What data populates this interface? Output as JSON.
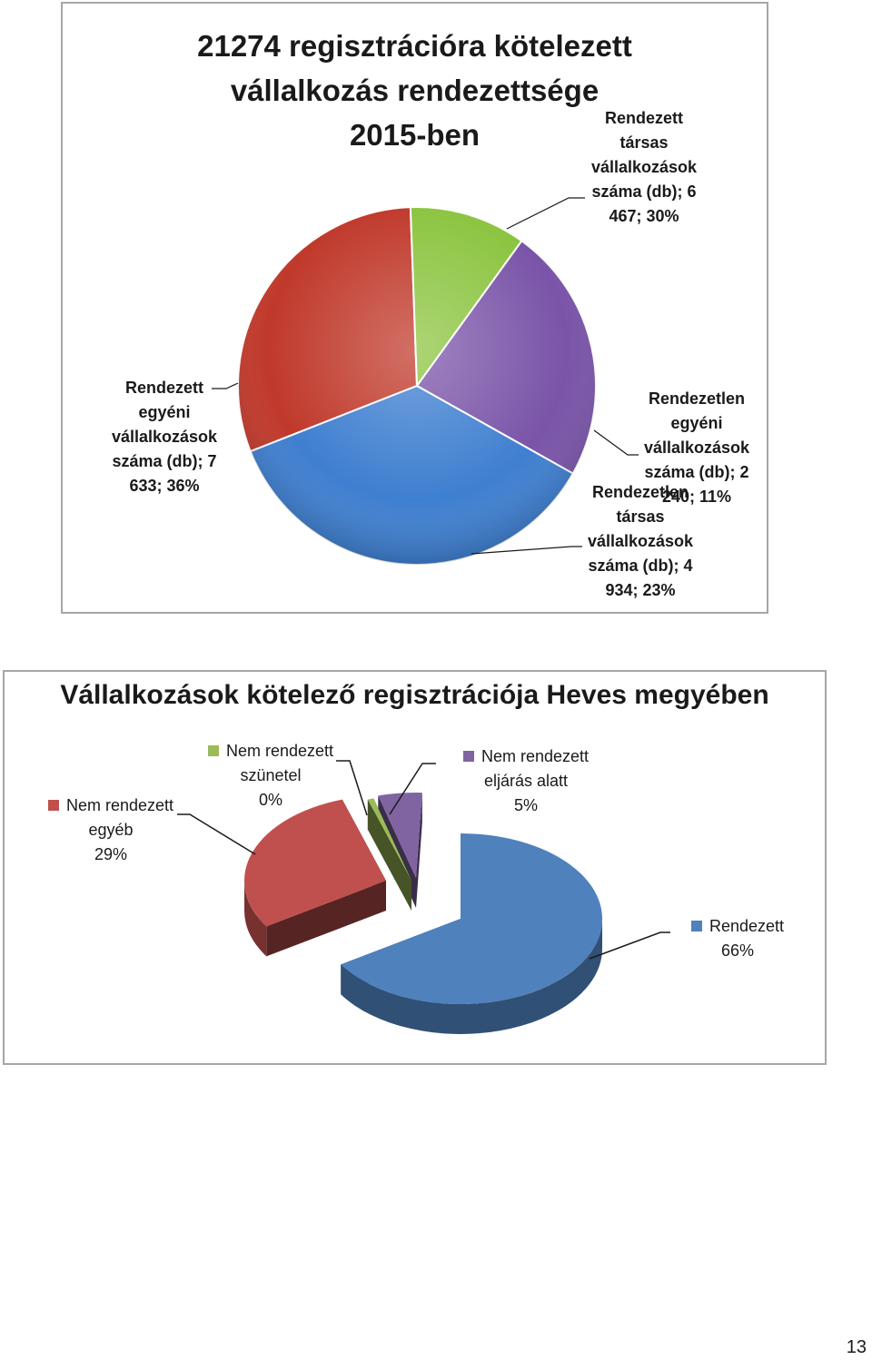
{
  "chart_data": [
    {
      "type": "pie",
      "title": [
        "21274 regisztrációra kötelezett",
        "vállalkozás rendezettsége",
        "2015-ben"
      ],
      "legend": "none",
      "slices": [
        {
          "name": "Rendezett társas vállalkozások száma (db)",
          "value": 6467,
          "percent": 30,
          "color": "#c0392b",
          "label": [
            "Rendezett",
            "társas",
            "vállalkozások",
            "száma (db); 6",
            "467; 30%"
          ]
        },
        {
          "name": "Rendezetlen egyéni vállalkozások száma (db)",
          "value": 2240,
          "percent": 11,
          "color": "#8bc43f",
          "label": [
            "Rendezetlen",
            "egyéni",
            "vállalkozások",
            "száma (db); 2",
            "240; 11%"
          ]
        },
        {
          "name": "Rendezetlen társas vállalkozások száma (db)",
          "value": 4934,
          "percent": 23,
          "color": "#7a54a8",
          "label": [
            "Rendezetlen",
            "társas",
            "vállalkozások",
            "száma (db); 4",
            "934; 23%"
          ]
        },
        {
          "name": "Rendezett egyéni vállalkozások száma (db)",
          "value": 7633,
          "percent": 36,
          "color": "#3f7fd0",
          "label": [
            "Rendezett",
            "egyéni",
            "vállalkozások",
            "száma (db); 7",
            "633; 36%"
          ]
        }
      ]
    },
    {
      "type": "pie",
      "title": "Vállalkozások kötelező regisztrációja Heves megyében",
      "three_d": true,
      "exploded": true,
      "legend": "none",
      "slices": [
        {
          "name": "Rendezett",
          "percent": 66,
          "color": "#4f81bd",
          "label": [
            "Rendezett",
            "66%"
          ]
        },
        {
          "name": "Nem rendezett egyéb",
          "percent": 29,
          "color": "#c0504d",
          "label": [
            "Nem rendezett",
            "egyéb",
            "29%"
          ]
        },
        {
          "name": "Nem rendezett szünetel",
          "percent": 0,
          "color": "#9bbb59",
          "label": [
            "Nem rendezett",
            "szünetel",
            "0%"
          ]
        },
        {
          "name": "Nem rendezett eljárás alatt",
          "percent": 5,
          "color": "#8064a2",
          "label": [
            "Nem rendezett",
            "eljárás alatt",
            "5%"
          ]
        }
      ]
    }
  ],
  "page_number": "13"
}
